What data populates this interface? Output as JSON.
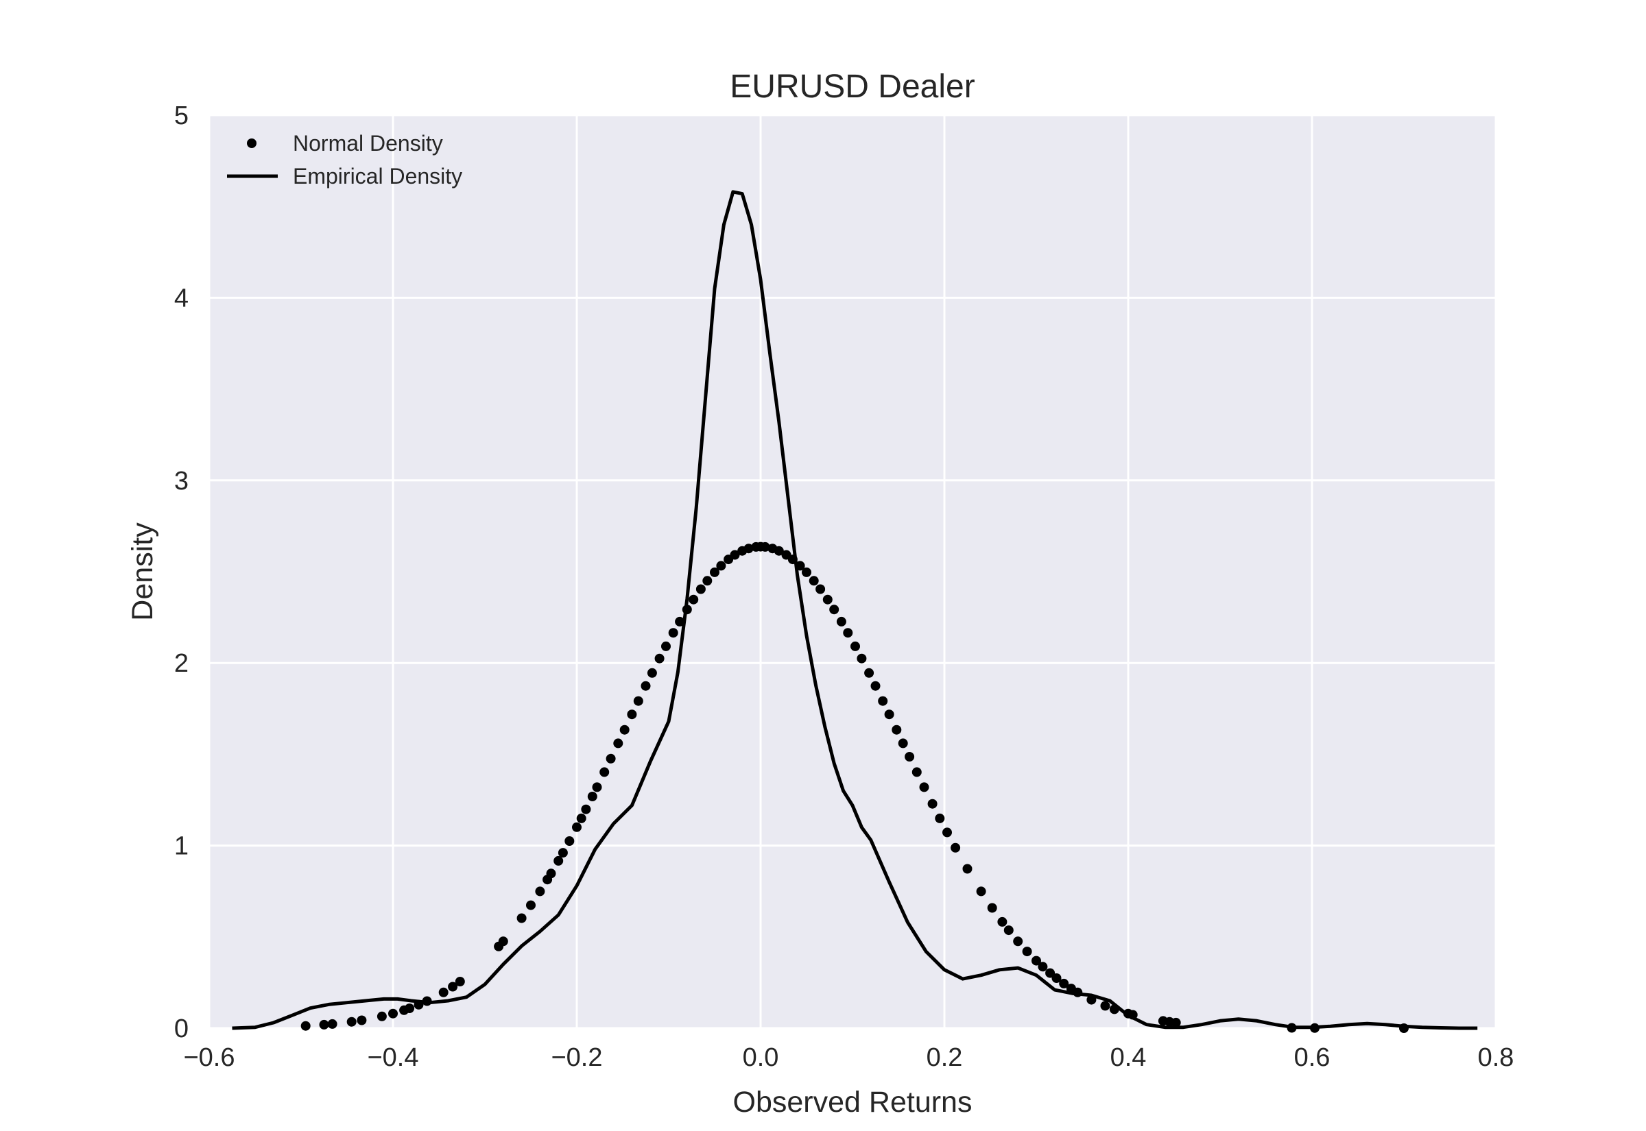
{
  "chart_data": {
    "type": "line",
    "title": "EURUSD Dealer",
    "xlabel": "Observed Returns",
    "ylabel": "Density",
    "xlim": [
      -0.6,
      0.8
    ],
    "ylim": [
      0,
      5
    ],
    "xticks": [
      "−0.6",
      "−0.4",
      "−0.2",
      "0.0",
      "0.2",
      "0.4",
      "0.6",
      "0.8"
    ],
    "yticks": [
      "0",
      "1",
      "2",
      "3",
      "4",
      "5"
    ],
    "grid": true,
    "background": "#eaeaf2",
    "gridColor": "#ffffff",
    "seriesColor": "#000000",
    "legend": "top-left",
    "series": [
      {
        "name": "Normal Density",
        "style": "points",
        "mean": 0.0,
        "std": 0.1513,
        "x": [
          -0.495,
          -0.475,
          -0.466,
          -0.445,
          -0.434,
          -0.412,
          -0.4,
          -0.388,
          -0.382,
          -0.372,
          -0.363,
          -0.345,
          -0.335,
          -0.327,
          -0.285,
          -0.28,
          -0.26,
          -0.25,
          -0.24,
          -0.232,
          -0.228,
          -0.22,
          -0.215,
          -0.208,
          -0.2,
          -0.195,
          -0.19,
          -0.183,
          -0.178,
          -0.17,
          -0.163,
          -0.155,
          -0.148,
          -0.14,
          -0.133,
          -0.125,
          -0.118,
          -0.11,
          -0.103,
          -0.095,
          -0.088,
          -0.08,
          -0.073,
          -0.065,
          -0.058,
          -0.05,
          -0.043,
          -0.035,
          -0.028,
          -0.02,
          -0.013,
          -0.005,
          0.0,
          0.005,
          0.013,
          0.02,
          0.028,
          0.035,
          0.043,
          0.05,
          0.058,
          0.065,
          0.073,
          0.08,
          0.088,
          0.095,
          0.103,
          0.11,
          0.118,
          0.125,
          0.133,
          0.14,
          0.148,
          0.155,
          0.162,
          0.17,
          0.178,
          0.187,
          0.195,
          0.203,
          0.212,
          0.225,
          0.24,
          0.252,
          0.263,
          0.27,
          0.28,
          0.29,
          0.3,
          0.307,
          0.315,
          0.322,
          0.33,
          0.338,
          0.345,
          0.36,
          0.375,
          0.385,
          0.4,
          0.405,
          0.438,
          0.445,
          0.452,
          0.578,
          0.603,
          0.7
        ]
      },
      {
        "name": "Empirical Density",
        "style": "line",
        "x": [
          -0.575,
          -0.55,
          -0.53,
          -0.51,
          -0.49,
          -0.47,
          -0.45,
          -0.43,
          -0.41,
          -0.395,
          -0.38,
          -0.36,
          -0.34,
          -0.32,
          -0.3,
          -0.28,
          -0.26,
          -0.24,
          -0.22,
          -0.2,
          -0.18,
          -0.16,
          -0.14,
          -0.12,
          -0.1,
          -0.09,
          -0.08,
          -0.07,
          -0.06,
          -0.05,
          -0.04,
          -0.03,
          -0.02,
          -0.01,
          0.0,
          0.01,
          0.02,
          0.03,
          0.04,
          0.05,
          0.06,
          0.07,
          0.08,
          0.09,
          0.1,
          0.11,
          0.12,
          0.14,
          0.16,
          0.18,
          0.2,
          0.22,
          0.24,
          0.26,
          0.28,
          0.3,
          0.32,
          0.34,
          0.36,
          0.38,
          0.4,
          0.42,
          0.44,
          0.46,
          0.48,
          0.5,
          0.52,
          0.54,
          0.56,
          0.58,
          0.6,
          0.62,
          0.64,
          0.66,
          0.68,
          0.7,
          0.72,
          0.74,
          0.76,
          0.78
        ],
        "y": [
          0.0,
          0.005,
          0.03,
          0.07,
          0.11,
          0.13,
          0.14,
          0.15,
          0.16,
          0.16,
          0.15,
          0.14,
          0.15,
          0.17,
          0.24,
          0.35,
          0.45,
          0.53,
          0.62,
          0.78,
          0.98,
          1.12,
          1.22,
          1.46,
          1.68,
          1.95,
          2.35,
          2.85,
          3.45,
          4.05,
          4.4,
          4.58,
          4.57,
          4.4,
          4.1,
          3.7,
          3.32,
          2.9,
          2.48,
          2.15,
          1.88,
          1.65,
          1.45,
          1.3,
          1.22,
          1.1,
          1.03,
          0.8,
          0.58,
          0.42,
          0.32,
          0.27,
          0.29,
          0.32,
          0.33,
          0.29,
          0.21,
          0.19,
          0.18,
          0.15,
          0.07,
          0.02,
          0.005,
          0.005,
          0.02,
          0.04,
          0.05,
          0.04,
          0.02,
          0.005,
          0.005,
          0.01,
          0.02,
          0.025,
          0.02,
          0.01,
          0.005,
          0.002,
          0.0,
          0.0
        ]
      }
    ]
  }
}
